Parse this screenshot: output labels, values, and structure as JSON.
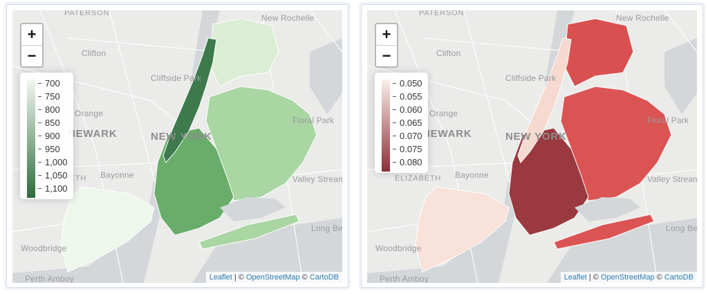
{
  "maps": [
    {
      "id": "left",
      "zoom": {
        "in_label": "+",
        "out_label": "−"
      },
      "legend": {
        "ticks": [
          "700",
          "750",
          "800",
          "850",
          "900",
          "950",
          "1,000",
          "1,050",
          "1,100"
        ],
        "color_low": "#f2f8ef",
        "color_high": "#2f6b3d"
      },
      "boroughs": {
        "manhattan": {
          "color": "#3d7a4c"
        },
        "bronx": {
          "color": "#dcedd6"
        },
        "queens": {
          "color": "#a9d6a3"
        },
        "brooklyn": {
          "color": "#68ad6a"
        },
        "staten_island": {
          "color": "#eef7ec"
        }
      },
      "places": {
        "paterson": "PATERSON",
        "new_rochelle": "New Rochelle",
        "clifton": "Clifton",
        "cliffside_park": "Cliffside Park",
        "orange": "Orange",
        "newark": "NEWARK",
        "new_york": "NEW YORK",
        "floral_park": "Floral Park",
        "elizabeth": "ELIZABETH",
        "bayonne": "Bayonne",
        "valley_stream": "Valley Stream",
        "long_beach": "Long Be",
        "woodbridge": "Woodbridge",
        "perth_amboy": "Perth Amboy"
      },
      "attribution": {
        "leaflet": "Leaflet",
        "sep": " | © ",
        "osm": "OpenStreetMap",
        "copy": " © ",
        "carto": "CartoDB"
      }
    },
    {
      "id": "right",
      "zoom": {
        "in_label": "+",
        "out_label": "−"
      },
      "legend": {
        "ticks": [
          "0.050",
          "0.055",
          "0.060",
          "0.065",
          "0.070",
          "0.075",
          "0.080"
        ],
        "color_low": "#fcefe9",
        "color_high": "#8b2e36"
      },
      "boroughs": {
        "manhattan": {
          "color": "#f6d9cf"
        },
        "bronx": {
          "color": "#d85050"
        },
        "queens": {
          "color": "#db5454"
        },
        "brooklyn": {
          "color": "#9a3a40"
        },
        "staten_island": {
          "color": "#f8e2da"
        }
      },
      "places": {
        "paterson": "PATERSON",
        "new_rochelle": "New Rochelle",
        "clifton": "Clifton",
        "cliffside_park": "Cliffside Park",
        "orange": "Orange",
        "newark": "NEWARK",
        "new_york": "NEW YORK",
        "floral_park": "Floral Park",
        "elizabeth": "ELIZABETH",
        "bayonne": "Bayonne",
        "valley_stream": "Valley Stream",
        "long_beach": "Long Be",
        "woodbridge": "Woodbridge",
        "perth_amboy": "Perth Amboy"
      },
      "attribution": {
        "leaflet": "Leaflet",
        "sep": " | © ",
        "osm": "OpenStreetMap",
        "copy": " © ",
        "carto": "CartoDB"
      }
    }
  ]
}
